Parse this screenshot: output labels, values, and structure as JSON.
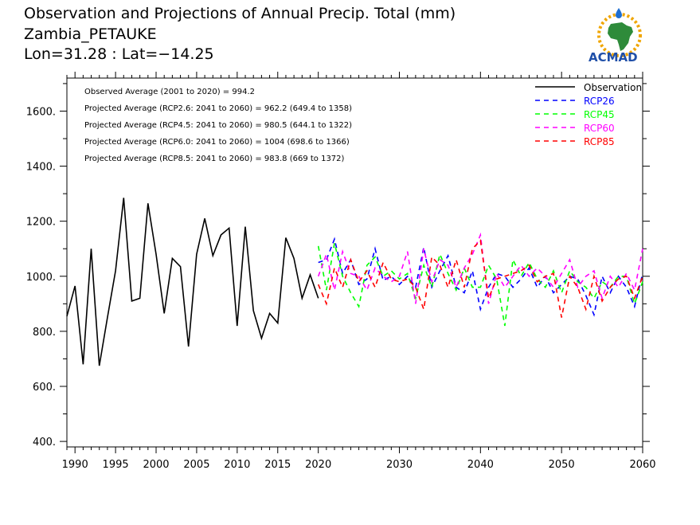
{
  "header": {
    "title_line1": "Observation and Projections of Annual Precip. Total (mm)",
    "title_line2": "Zambia_PETAUKE",
    "title_line3": "Lon=31.28 : Lat=−14.25"
  },
  "logo": {
    "text": "ACMAD",
    "colors": {
      "africa": "#2e8b3a",
      "ring": "#f0a500",
      "drop": "#1f6fd1",
      "text": "#1f4fa8"
    }
  },
  "chart_data": {
    "type": "line",
    "xlim": [
      1989,
      2060
    ],
    "ylim": [
      380,
      1720
    ],
    "x_ticks": [
      1990,
      1995,
      2000,
      2005,
      2010,
      2015,
      2020,
      2030,
      2040,
      2050,
      2060
    ],
    "x_tick_labels": [
      "1990",
      "1995",
      "2000",
      "2005",
      "2010",
      "2015",
      "2020",
      "2030",
      "2040",
      "2050",
      "2060"
    ],
    "y_ticks": [
      400,
      600,
      800,
      1000,
      1200,
      1400,
      1600
    ],
    "y_tick_labels": [
      "400.",
      "600.",
      "800.",
      "1000.",
      "1200.",
      "1400.",
      "1600."
    ],
    "annotations": [
      "Observed Average (2001 to 2020) = 994.2",
      "Projected Average (RCP2.6: 2041 to 2060) = 962.2 (649.4 to 1358)",
      "Projected Average (RCP4.5: 2041 to 2060) = 980.5 (644.1 to 1322)",
      "Projected Average (RCP6.0: 2041 to 2060) = 1004 (698.6 to 1366)",
      "Projected Average (RCP8.5: 2041 to 2060) = 983.8 (669 to 1372)"
    ],
    "legend_position": "top-right",
    "series": [
      {
        "name": "Observation",
        "color": "#000000",
        "dash": "solid",
        "x": [
          1989,
          1990,
          1991,
          1992,
          1993,
          1994,
          1995,
          1996,
          1997,
          1998,
          1999,
          2000,
          2001,
          2002,
          2003,
          2004,
          2005,
          2006,
          2007,
          2008,
          2009,
          2010,
          2011,
          2012,
          2013,
          2014,
          2015,
          2016,
          2017,
          2018,
          2019,
          2020
        ],
        "values": [
          855,
          965,
          680,
          1100,
          675,
          850,
          1020,
          1285,
          910,
          920,
          1265,
          1080,
          865,
          1065,
          1035,
          745,
          1080,
          1210,
          1075,
          1150,
          1175,
          820,
          1180,
          875,
          775,
          865,
          830,
          1140,
          1065,
          920,
          1005,
          920
        ]
      },
      {
        "name": "RCP26",
        "color": "#0000ff",
        "dash": "dashed",
        "x": [
          2020,
          2021,
          2022,
          2023,
          2024,
          2025,
          2026,
          2027,
          2028,
          2029,
          2030,
          2031,
          2032,
          2033,
          2034,
          2035,
          2036,
          2037,
          2038,
          2039,
          2040,
          2041,
          2042,
          2043,
          2044,
          2045,
          2046,
          2047,
          2048,
          2049,
          2050,
          2051,
          2052,
          2053,
          2054,
          2055,
          2056,
          2057,
          2058,
          2059,
          2060
        ],
        "values": [
          1050,
          1060,
          1135,
          1010,
          1060,
          970,
          990,
          1100,
          985,
          1000,
          970,
          1000,
          960,
          1105,
          960,
          1020,
          1075,
          960,
          940,
          1020,
          880,
          960,
          1010,
          1000,
          960,
          990,
          1030,
          960,
          1000,
          940,
          970,
          1000,
          990,
          930,
          860,
          1000,
          940,
          1000,
          960,
          890,
          1010
        ]
      },
      {
        "name": "RCP45",
        "color": "#00ff00",
        "dash": "dashed",
        "x": [
          2020,
          2021,
          2022,
          2023,
          2024,
          2025,
          2026,
          2027,
          2028,
          2029,
          2030,
          2031,
          2032,
          2033,
          2034,
          2035,
          2036,
          2037,
          2038,
          2039,
          2040,
          2041,
          2042,
          2043,
          2044,
          2045,
          2046,
          2047,
          2048,
          2049,
          2050,
          2051,
          2052,
          2053,
          2054,
          2055,
          2056,
          2057,
          2058,
          2059,
          2060
        ],
        "values": [
          1110,
          950,
          1120,
          1000,
          940,
          890,
          1040,
          1070,
          1000,
          1020,
          990,
          1010,
          920,
          1040,
          960,
          1080,
          1010,
          950,
          1030,
          960,
          960,
          1040,
          990,
          820,
          1060,
          1000,
          1050,
          990,
          960,
          1020,
          940,
          1020,
          980,
          960,
          920,
          980,
          960,
          1000,
          1000,
          900,
          980
        ]
      },
      {
        "name": "RCP60",
        "color": "#ff00ff",
        "dash": "dashed",
        "x": [
          2020,
          2021,
          2022,
          2023,
          2024,
          2025,
          2026,
          2027,
          2028,
          2029,
          2030,
          2031,
          2032,
          2033,
          2034,
          2035,
          2036,
          2037,
          2038,
          2039,
          2040,
          2041,
          2042,
          2043,
          2044,
          2045,
          2046,
          2047,
          2048,
          2049,
          2050,
          2051,
          2052,
          2053,
          2054,
          2055,
          2056,
          2057,
          2058,
          2059,
          2060
        ],
        "values": [
          1000,
          1080,
          950,
          1090,
          1010,
          1000,
          950,
          1030,
          1000,
          980,
          1000,
          1090,
          900,
          1100,
          980,
          1060,
          1040,
          960,
          1030,
          1080,
          1150,
          900,
          1010,
          960,
          1000,
          1040,
          1000,
          1030,
          1000,
          960,
          1010,
          1060,
          960,
          1000,
          1020,
          920,
          1000,
          960,
          1010,
          950,
          1100
        ]
      },
      {
        "name": "RCP85",
        "color": "#ff0000",
        "dash": "dashed",
        "x": [
          2020,
          2021,
          2022,
          2023,
          2024,
          2025,
          2026,
          2027,
          2028,
          2029,
          2030,
          2031,
          2032,
          2033,
          2034,
          2035,
          2036,
          2037,
          2038,
          2039,
          2040,
          2041,
          2042,
          2043,
          2044,
          2045,
          2046,
          2047,
          2048,
          2049,
          2050,
          2051,
          2052,
          2053,
          2054,
          2055,
          2056,
          2057,
          2058,
          2059,
          2060
        ],
        "values": [
          970,
          900,
          1030,
          960,
          1060,
          980,
          1020,
          960,
          1050,
          990,
          980,
          990,
          960,
          880,
          1070,
          1040,
          960,
          1060,
          960,
          1100,
          1130,
          920,
          990,
          1000,
          1010,
          1020,
          1040,
          980,
          1000,
          1010,
          850,
          1000,
          960,
          880,
          1000,
          910,
          960,
          990,
          1000,
          920,
          1000
        ]
      }
    ]
  }
}
